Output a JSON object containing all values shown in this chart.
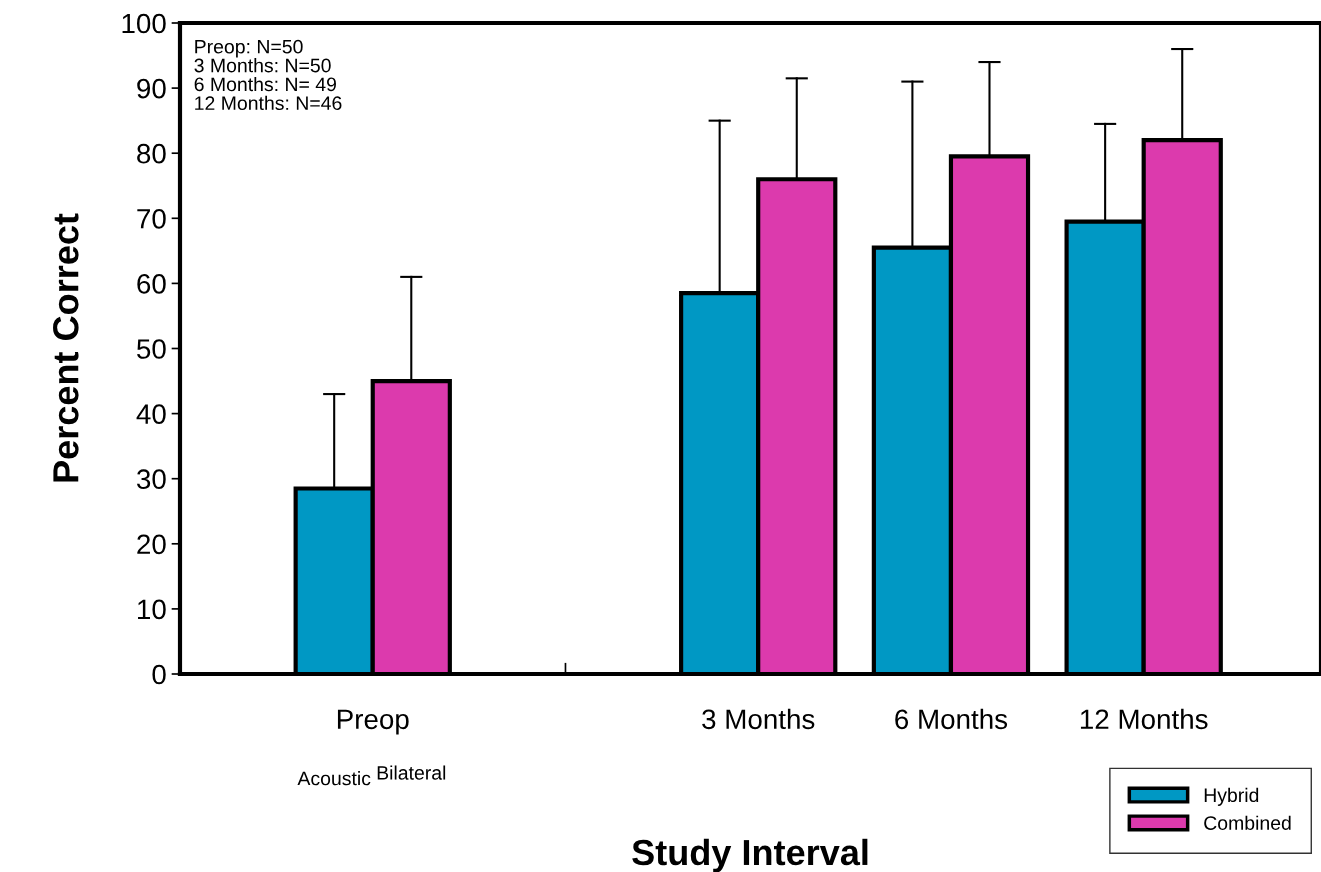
{
  "chart_data": {
    "type": "bar",
    "xlabel": "Study Interval",
    "ylabel": "Percent Correct",
    "categories": [
      "Preop",
      null,
      "3 Months",
      "6 Months",
      "12 Months"
    ],
    "series": [
      {
        "name": "Hybrid",
        "color": "#0098c4",
        "values": [
          28.5,
          null,
          58.5,
          65.5,
          69.5
        ],
        "errors": [
          [
            28.5,
            43
          ],
          null,
          [
            58.5,
            85
          ],
          [
            65.5,
            91
          ],
          [
            69.5,
            84.5
          ]
        ]
      },
      {
        "name": "Combined",
        "color": "#dc3aad",
        "values": [
          45,
          null,
          76,
          79.5,
          82
        ],
        "errors": [
          [
            45,
            61
          ],
          null,
          [
            76,
            91.5
          ],
          [
            79.5,
            94
          ],
          [
            82,
            96
          ]
        ]
      }
    ],
    "ylim": [
      0,
      100
    ],
    "yticks": [
      0,
      10,
      20,
      30,
      40,
      50,
      60,
      70,
      80,
      90,
      100
    ],
    "grid": false,
    "legend": "bottom right",
    "annotations": [
      "Preop: N=50\n3 Months: N=50\n6 Months: N= 49\n12 Months: N=46",
      "Acoustic",
      "Bilateral"
    ]
  }
}
